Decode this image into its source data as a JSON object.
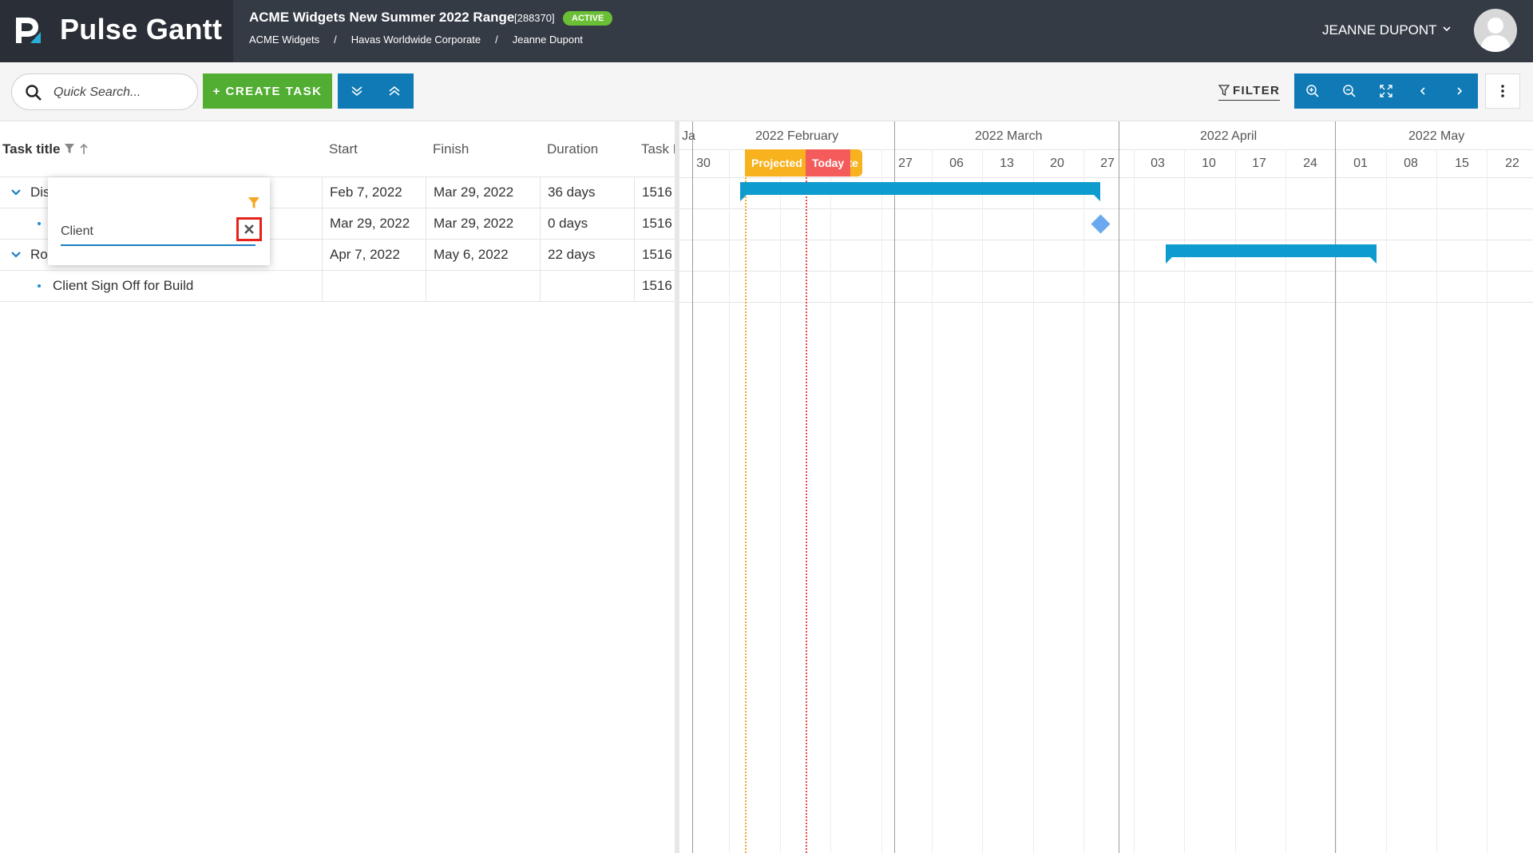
{
  "app": {
    "brand_name": "Pulse Gantt",
    "project_title": "ACME Widgets New Summer 2022 Range",
    "project_id": "[288370]",
    "status_badge": "ACTIVE",
    "breadcrumb": [
      "ACME Widgets",
      "Havas Worldwide Corporate",
      "Jeanne Dupont"
    ],
    "breadcrumb_sep": "/",
    "user_name": "JEANNE DUPONT",
    "colors": {
      "header_bg": "#353b45",
      "brand_bg": "#2a2f37",
      "green": "#52ae32",
      "blue": "#0f7ab5",
      "bar": "#0d9ccd",
      "badge": "#6bbf36"
    }
  },
  "toolbar": {
    "search_placeholder": "Quick Search...",
    "create_task_label": "+ CREATE TASK",
    "filter_label": "FILTER",
    "icons": [
      "search-icon",
      "expand-all-icon",
      "collapse-all-icon",
      "filter-icon",
      "zoom-in-icon",
      "zoom-out-icon",
      "fit-icon",
      "chevron-left-icon",
      "chevron-right-icon",
      "more-vertical-icon"
    ]
  },
  "grid": {
    "columns": [
      "Task title",
      "Start",
      "Finish",
      "Duration",
      "Task I"
    ],
    "rows": [
      {
        "title": "Dis",
        "start": "Feb 7, 2022",
        "finish": "Mar 29, 2022",
        "duration": "36 days",
        "task_id": "1516",
        "type": "parent"
      },
      {
        "title": "",
        "start": "Mar 29, 2022",
        "finish": "Mar 29, 2022",
        "duration": "0 days",
        "task_id": "1516",
        "type": "child"
      },
      {
        "title": "Rou",
        "start": "Apr 7, 2022",
        "finish": "May 6, 2022",
        "duration": "22 days",
        "task_id": "1516",
        "type": "parent"
      },
      {
        "title": "Client Sign Off for Build",
        "start": "",
        "finish": "",
        "duration": "",
        "task_id": "1516",
        "type": "child"
      }
    ]
  },
  "filter_popup": {
    "value": "Client"
  },
  "timeline": {
    "months": [
      "Ja",
      "2022 February",
      "2022 March",
      "2022 April",
      "2022 May"
    ],
    "weeks": [
      "30",
      "",
      "",
      "",
      "27",
      "06",
      "13",
      "20",
      "27",
      "03",
      "10",
      "17",
      "24",
      "01",
      "08",
      "15",
      "22"
    ],
    "projected_label": "Projected Start Date",
    "today_label": "Today"
  }
}
